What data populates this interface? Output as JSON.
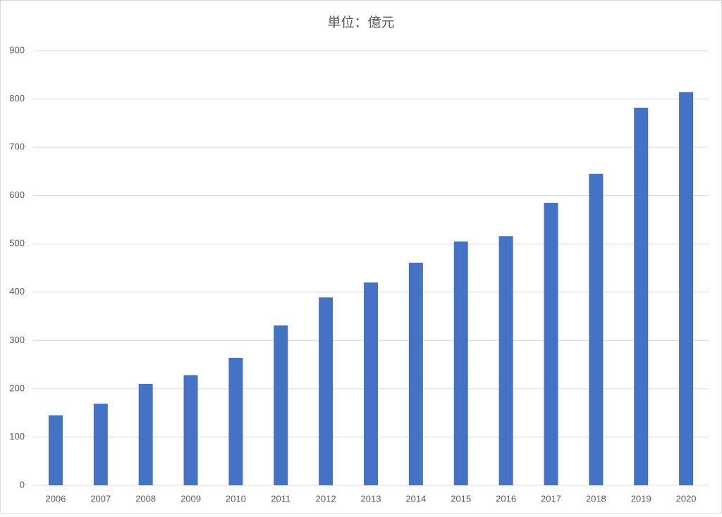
{
  "chart_data": {
    "type": "bar",
    "title": "単位：億元",
    "categories": [
      "2006",
      "2007",
      "2008",
      "2009",
      "2010",
      "2011",
      "2012",
      "2013",
      "2014",
      "2015",
      "2016",
      "2017",
      "2018",
      "2019",
      "2020"
    ],
    "values": [
      145,
      169,
      210,
      228,
      264,
      331,
      389,
      420,
      461,
      505,
      516,
      585,
      645,
      782,
      814
    ],
    "color": "#4472c4",
    "ylim": [
      0,
      900
    ],
    "yticks": [
      0,
      100,
      200,
      300,
      400,
      500,
      600,
      700,
      800,
      900
    ],
    "grid": true
  }
}
